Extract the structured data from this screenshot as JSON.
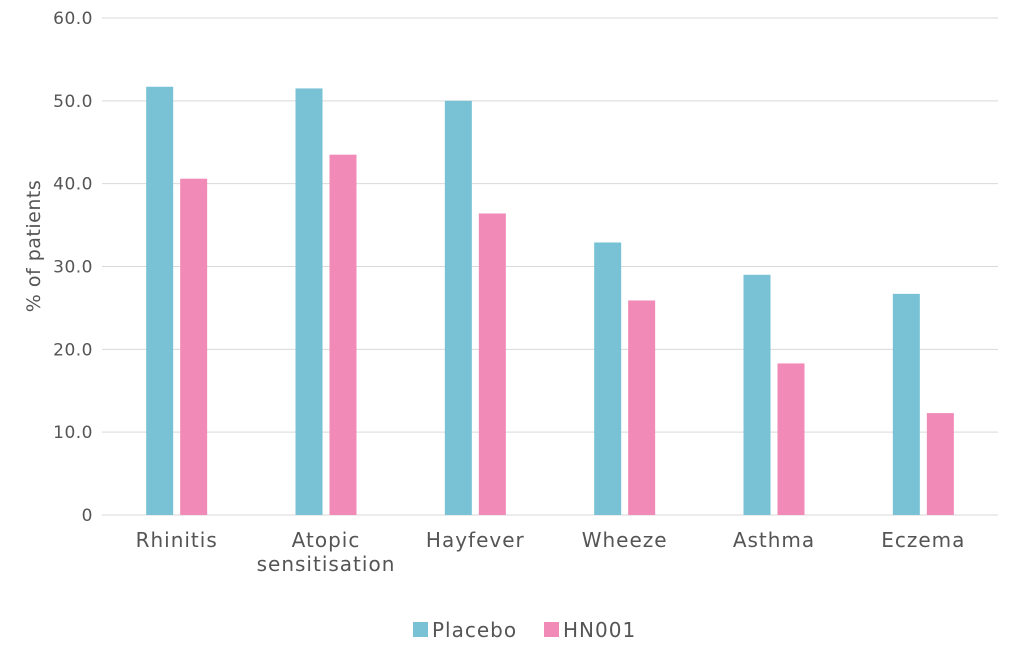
{
  "chart_data": {
    "type": "bar",
    "ylabel": "% of patients",
    "xlabel": "",
    "ylim": [
      0,
      60
    ],
    "yticks": [
      "0",
      "10.0",
      "20.0",
      "30.0",
      "40.0",
      "50.0",
      "60.0"
    ],
    "grid": true,
    "legend_position": "bottom-center",
    "categories": [
      [
        "Rhinitis"
      ],
      [
        "Atopic",
        "sensitisation"
      ],
      [
        "Hayfever"
      ],
      [
        "Wheeze"
      ],
      [
        "Asthma"
      ],
      [
        "Eczema"
      ]
    ],
    "series": [
      {
        "name": "Placebo",
        "color": "#79c2d6",
        "values": [
          51.7,
          51.5,
          50.0,
          32.9,
          29.0,
          26.7
        ]
      },
      {
        "name": "HN001",
        "color": "#f28ab7",
        "values": [
          40.6,
          43.5,
          36.4,
          25.9,
          18.3,
          12.3
        ]
      }
    ]
  }
}
